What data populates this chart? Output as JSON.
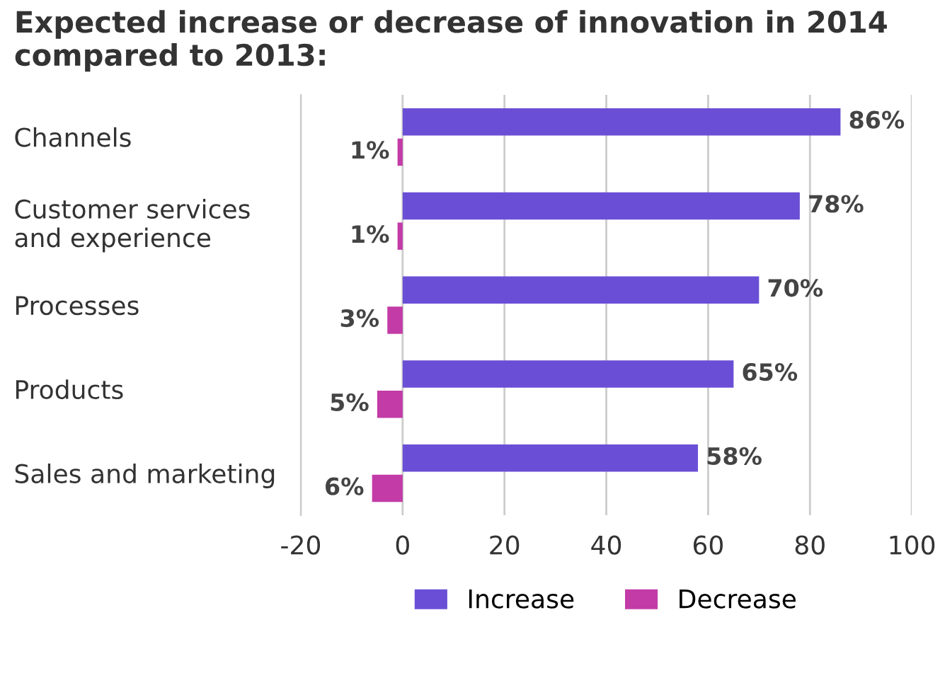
{
  "chart_data": {
    "type": "bar",
    "orientation": "horizontal",
    "title": "Expected increase or decrease of innovation in 2014 compared to 2013:",
    "categories": [
      "Channels",
      "Customer services\nand experience",
      "Processes",
      "Products",
      "Sales and marketing"
    ],
    "series": [
      {
        "name": "Increase",
        "color": "#6a4fd6",
        "values": [
          86,
          78,
          70,
          65,
          58
        ],
        "value_labels": [
          "86%",
          "78%",
          "70%",
          "65%",
          "58%"
        ]
      },
      {
        "name": "Decrease",
        "color": "#c23ba6",
        "values": [
          1,
          1,
          3,
          5,
          6
        ],
        "base": [
          -1,
          -1,
          -3,
          -5,
          -6
        ],
        "value_labels": [
          "1%",
          "1%",
          "3%",
          "5%",
          "6%"
        ]
      }
    ],
    "xlim": [
      -20,
      100
    ],
    "xticks": [
      -20,
      0,
      20,
      40,
      60,
      80,
      100
    ],
    "grid": "x",
    "legend": "bottom"
  }
}
